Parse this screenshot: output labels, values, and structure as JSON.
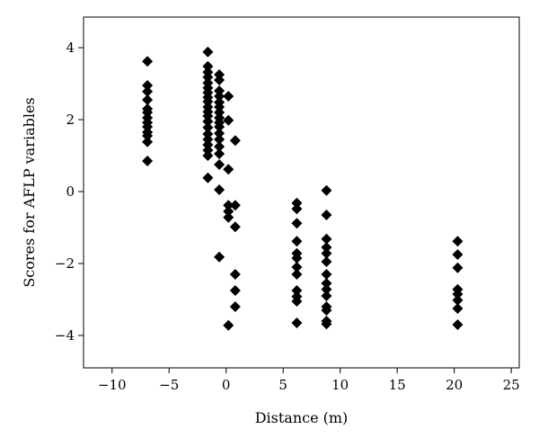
{
  "chart_data": {
    "type": "scatter",
    "title": "",
    "xlabel": "Distance (m)",
    "ylabel": "Scores for AFLP variables",
    "xlim": [
      -12.5,
      25.7
    ],
    "ylim": [
      -4.9,
      4.85
    ],
    "xticks": [
      -10,
      -5,
      0,
      5,
      10,
      15,
      20,
      25
    ],
    "yticks": [
      -4,
      -2,
      0,
      2,
      4
    ],
    "xtick_labels": [
      "−10",
      "−5",
      "0",
      "5",
      "10",
      "15",
      "20",
      "25"
    ],
    "ytick_labels": [
      "−4",
      "−2",
      "0",
      "2",
      "4"
    ],
    "grid": false,
    "legend": "none",
    "marker": "diamond",
    "marker_color": "#000000",
    "series": [
      {
        "points": [
          [
            -6.9,
            3.62
          ],
          [
            -6.9,
            2.95
          ],
          [
            -6.9,
            2.78
          ],
          [
            -6.9,
            2.55
          ],
          [
            -6.9,
            2.3
          ],
          [
            -6.9,
            2.2
          ],
          [
            -6.9,
            2.05
          ],
          [
            -6.9,
            1.92
          ],
          [
            -6.9,
            1.8
          ],
          [
            -6.9,
            1.65
          ],
          [
            -6.9,
            1.55
          ],
          [
            -6.9,
            1.38
          ],
          [
            -6.9,
            0.85
          ],
          [
            -1.6,
            3.88
          ],
          [
            -1.6,
            3.48
          ],
          [
            -1.6,
            3.32
          ],
          [
            -1.6,
            3.18
          ],
          [
            -1.6,
            3.02
          ],
          [
            -1.6,
            2.88
          ],
          [
            -1.6,
            2.75
          ],
          [
            -1.6,
            2.62
          ],
          [
            -1.6,
            2.5
          ],
          [
            -1.6,
            2.35
          ],
          [
            -1.6,
            2.22
          ],
          [
            -1.6,
            2.1
          ],
          [
            -1.6,
            1.95
          ],
          [
            -1.6,
            1.78
          ],
          [
            -1.6,
            1.6
          ],
          [
            -1.6,
            1.45
          ],
          [
            -1.6,
            1.3
          ],
          [
            -1.6,
            1.15
          ],
          [
            -1.6,
            1.0
          ],
          [
            -1.6,
            0.38
          ],
          [
            -0.6,
            3.25
          ],
          [
            -0.6,
            3.1
          ],
          [
            -0.6,
            2.8
          ],
          [
            -0.6,
            2.65
          ],
          [
            -0.6,
            2.48
          ],
          [
            -0.6,
            2.35
          ],
          [
            -0.6,
            2.2
          ],
          [
            -0.6,
            2.05
          ],
          [
            -0.6,
            1.92
          ],
          [
            -0.6,
            1.8
          ],
          [
            -0.6,
            1.62
          ],
          [
            -0.6,
            1.45
          ],
          [
            -0.6,
            1.25
          ],
          [
            -0.6,
            1.05
          ],
          [
            -0.6,
            0.75
          ],
          [
            -0.6,
            0.05
          ],
          [
            -0.6,
            -1.82
          ],
          [
            0.2,
            2.65
          ],
          [
            0.2,
            1.98
          ],
          [
            0.2,
            0.62
          ],
          [
            0.2,
            -0.38
          ],
          [
            0.2,
            -0.55
          ],
          [
            0.2,
            -0.72
          ],
          [
            0.2,
            -3.72
          ],
          [
            0.8,
            1.42
          ],
          [
            0.8,
            -0.38
          ],
          [
            0.8,
            -0.98
          ],
          [
            0.8,
            -2.3
          ],
          [
            0.8,
            -2.75
          ],
          [
            0.8,
            -3.2
          ],
          [
            6.2,
            -0.32
          ],
          [
            6.2,
            -0.48
          ],
          [
            6.2,
            -0.88
          ],
          [
            6.2,
            -1.38
          ],
          [
            6.2,
            -1.72
          ],
          [
            6.2,
            -1.85
          ],
          [
            6.2,
            -2.1
          ],
          [
            6.2,
            -2.3
          ],
          [
            6.2,
            -2.75
          ],
          [
            6.2,
            -2.92
          ],
          [
            6.2,
            -3.05
          ],
          [
            6.2,
            -3.65
          ],
          [
            8.8,
            0.03
          ],
          [
            8.8,
            -0.65
          ],
          [
            8.8,
            -1.32
          ],
          [
            8.8,
            -1.55
          ],
          [
            8.8,
            -1.72
          ],
          [
            8.8,
            -1.95
          ],
          [
            8.8,
            -2.3
          ],
          [
            8.8,
            -2.55
          ],
          [
            8.8,
            -2.72
          ],
          [
            8.8,
            -2.9
          ],
          [
            8.8,
            -3.2
          ],
          [
            8.8,
            -3.3
          ],
          [
            8.8,
            -3.6
          ],
          [
            8.8,
            -3.68
          ],
          [
            20.3,
            -1.38
          ],
          [
            20.3,
            -1.75
          ],
          [
            20.3,
            -2.12
          ],
          [
            20.3,
            -2.72
          ],
          [
            20.3,
            -2.85
          ],
          [
            20.3,
            -3.02
          ],
          [
            20.3,
            -3.25
          ],
          [
            20.3,
            -3.7
          ]
        ]
      }
    ]
  }
}
